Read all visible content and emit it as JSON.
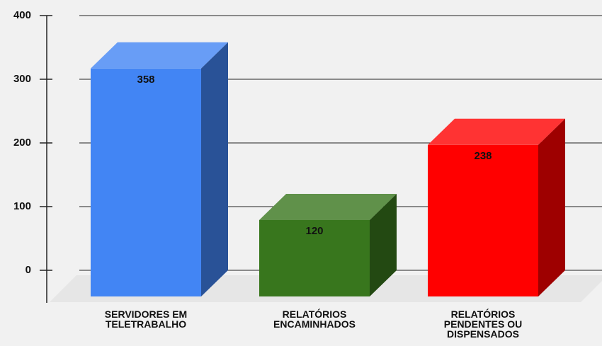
{
  "chart_data": {
    "type": "bar3d",
    "categories": [
      "SERVIDORES EM TELETRABALHO",
      "RELATÓRIOS ENCAMINHADOS",
      "RELATÓRIOS PENDENTES OU DISPENSADOS"
    ],
    "values": [
      358,
      120,
      238
    ],
    "colors": [
      "#4285f4",
      "#38761d",
      "#ff0000"
    ],
    "ylim": [
      0,
      400
    ],
    "yticks": [
      0,
      100,
      200,
      300,
      400
    ],
    "grid": true
  }
}
